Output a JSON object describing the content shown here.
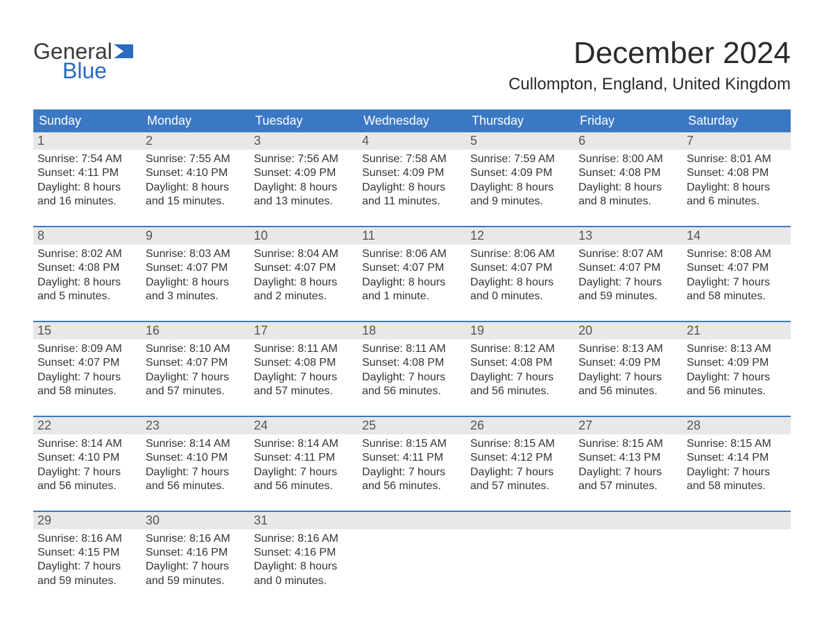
{
  "logo": {
    "word1": "General",
    "word2": "Blue",
    "brand_color": "#2a6bbf",
    "text_color": "#3a3a3a"
  },
  "title": "December 2024",
  "location": "Cullompton, England, United Kingdom",
  "colors": {
    "header_bg": "#3b78c4",
    "header_text": "#ffffff",
    "daynum_bg": "#e8e8e8",
    "daynum_text": "#555555",
    "body_text": "#333333",
    "week_border": "#3b78c4"
  },
  "day_names": [
    "Sunday",
    "Monday",
    "Tuesday",
    "Wednesday",
    "Thursday",
    "Friday",
    "Saturday"
  ],
  "weeks": [
    [
      {
        "n": "1",
        "sunrise": "Sunrise: 7:54 AM",
        "sunset": "Sunset: 4:11 PM",
        "d1": "Daylight: 8 hours",
        "d2": "and 16 minutes."
      },
      {
        "n": "2",
        "sunrise": "Sunrise: 7:55 AM",
        "sunset": "Sunset: 4:10 PM",
        "d1": "Daylight: 8 hours",
        "d2": "and 15 minutes."
      },
      {
        "n": "3",
        "sunrise": "Sunrise: 7:56 AM",
        "sunset": "Sunset: 4:09 PM",
        "d1": "Daylight: 8 hours",
        "d2": "and 13 minutes."
      },
      {
        "n": "4",
        "sunrise": "Sunrise: 7:58 AM",
        "sunset": "Sunset: 4:09 PM",
        "d1": "Daylight: 8 hours",
        "d2": "and 11 minutes."
      },
      {
        "n": "5",
        "sunrise": "Sunrise: 7:59 AM",
        "sunset": "Sunset: 4:09 PM",
        "d1": "Daylight: 8 hours",
        "d2": "and 9 minutes."
      },
      {
        "n": "6",
        "sunrise": "Sunrise: 8:00 AM",
        "sunset": "Sunset: 4:08 PM",
        "d1": "Daylight: 8 hours",
        "d2": "and 8 minutes."
      },
      {
        "n": "7",
        "sunrise": "Sunrise: 8:01 AM",
        "sunset": "Sunset: 4:08 PM",
        "d1": "Daylight: 8 hours",
        "d2": "and 6 minutes."
      }
    ],
    [
      {
        "n": "8",
        "sunrise": "Sunrise: 8:02 AM",
        "sunset": "Sunset: 4:08 PM",
        "d1": "Daylight: 8 hours",
        "d2": "and 5 minutes."
      },
      {
        "n": "9",
        "sunrise": "Sunrise: 8:03 AM",
        "sunset": "Sunset: 4:07 PM",
        "d1": "Daylight: 8 hours",
        "d2": "and 3 minutes."
      },
      {
        "n": "10",
        "sunrise": "Sunrise: 8:04 AM",
        "sunset": "Sunset: 4:07 PM",
        "d1": "Daylight: 8 hours",
        "d2": "and 2 minutes."
      },
      {
        "n": "11",
        "sunrise": "Sunrise: 8:06 AM",
        "sunset": "Sunset: 4:07 PM",
        "d1": "Daylight: 8 hours",
        "d2": "and 1 minute."
      },
      {
        "n": "12",
        "sunrise": "Sunrise: 8:06 AM",
        "sunset": "Sunset: 4:07 PM",
        "d1": "Daylight: 8 hours",
        "d2": "and 0 minutes."
      },
      {
        "n": "13",
        "sunrise": "Sunrise: 8:07 AM",
        "sunset": "Sunset: 4:07 PM",
        "d1": "Daylight: 7 hours",
        "d2": "and 59 minutes."
      },
      {
        "n": "14",
        "sunrise": "Sunrise: 8:08 AM",
        "sunset": "Sunset: 4:07 PM",
        "d1": "Daylight: 7 hours",
        "d2": "and 58 minutes."
      }
    ],
    [
      {
        "n": "15",
        "sunrise": "Sunrise: 8:09 AM",
        "sunset": "Sunset: 4:07 PM",
        "d1": "Daylight: 7 hours",
        "d2": "and 58 minutes."
      },
      {
        "n": "16",
        "sunrise": "Sunrise: 8:10 AM",
        "sunset": "Sunset: 4:07 PM",
        "d1": "Daylight: 7 hours",
        "d2": "and 57 minutes."
      },
      {
        "n": "17",
        "sunrise": "Sunrise: 8:11 AM",
        "sunset": "Sunset: 4:08 PM",
        "d1": "Daylight: 7 hours",
        "d2": "and 57 minutes."
      },
      {
        "n": "18",
        "sunrise": "Sunrise: 8:11 AM",
        "sunset": "Sunset: 4:08 PM",
        "d1": "Daylight: 7 hours",
        "d2": "and 56 minutes."
      },
      {
        "n": "19",
        "sunrise": "Sunrise: 8:12 AM",
        "sunset": "Sunset: 4:08 PM",
        "d1": "Daylight: 7 hours",
        "d2": "and 56 minutes."
      },
      {
        "n": "20",
        "sunrise": "Sunrise: 8:13 AM",
        "sunset": "Sunset: 4:09 PM",
        "d1": "Daylight: 7 hours",
        "d2": "and 56 minutes."
      },
      {
        "n": "21",
        "sunrise": "Sunrise: 8:13 AM",
        "sunset": "Sunset: 4:09 PM",
        "d1": "Daylight: 7 hours",
        "d2": "and 56 minutes."
      }
    ],
    [
      {
        "n": "22",
        "sunrise": "Sunrise: 8:14 AM",
        "sunset": "Sunset: 4:10 PM",
        "d1": "Daylight: 7 hours",
        "d2": "and 56 minutes."
      },
      {
        "n": "23",
        "sunrise": "Sunrise: 8:14 AM",
        "sunset": "Sunset: 4:10 PM",
        "d1": "Daylight: 7 hours",
        "d2": "and 56 minutes."
      },
      {
        "n": "24",
        "sunrise": "Sunrise: 8:14 AM",
        "sunset": "Sunset: 4:11 PM",
        "d1": "Daylight: 7 hours",
        "d2": "and 56 minutes."
      },
      {
        "n": "25",
        "sunrise": "Sunrise: 8:15 AM",
        "sunset": "Sunset: 4:11 PM",
        "d1": "Daylight: 7 hours",
        "d2": "and 56 minutes."
      },
      {
        "n": "26",
        "sunrise": "Sunrise: 8:15 AM",
        "sunset": "Sunset: 4:12 PM",
        "d1": "Daylight: 7 hours",
        "d2": "and 57 minutes."
      },
      {
        "n": "27",
        "sunrise": "Sunrise: 8:15 AM",
        "sunset": "Sunset: 4:13 PM",
        "d1": "Daylight: 7 hours",
        "d2": "and 57 minutes."
      },
      {
        "n": "28",
        "sunrise": "Sunrise: 8:15 AM",
        "sunset": "Sunset: 4:14 PM",
        "d1": "Daylight: 7 hours",
        "d2": "and 58 minutes."
      }
    ],
    [
      {
        "n": "29",
        "sunrise": "Sunrise: 8:16 AM",
        "sunset": "Sunset: 4:15 PM",
        "d1": "Daylight: 7 hours",
        "d2": "and 59 minutes."
      },
      {
        "n": "30",
        "sunrise": "Sunrise: 8:16 AM",
        "sunset": "Sunset: 4:16 PM",
        "d1": "Daylight: 7 hours",
        "d2": "and 59 minutes."
      },
      {
        "n": "31",
        "sunrise": "Sunrise: 8:16 AM",
        "sunset": "Sunset: 4:16 PM",
        "d1": "Daylight: 8 hours",
        "d2": "and 0 minutes."
      },
      {
        "empty": true
      },
      {
        "empty": true
      },
      {
        "empty": true
      },
      {
        "empty": true
      }
    ]
  ]
}
